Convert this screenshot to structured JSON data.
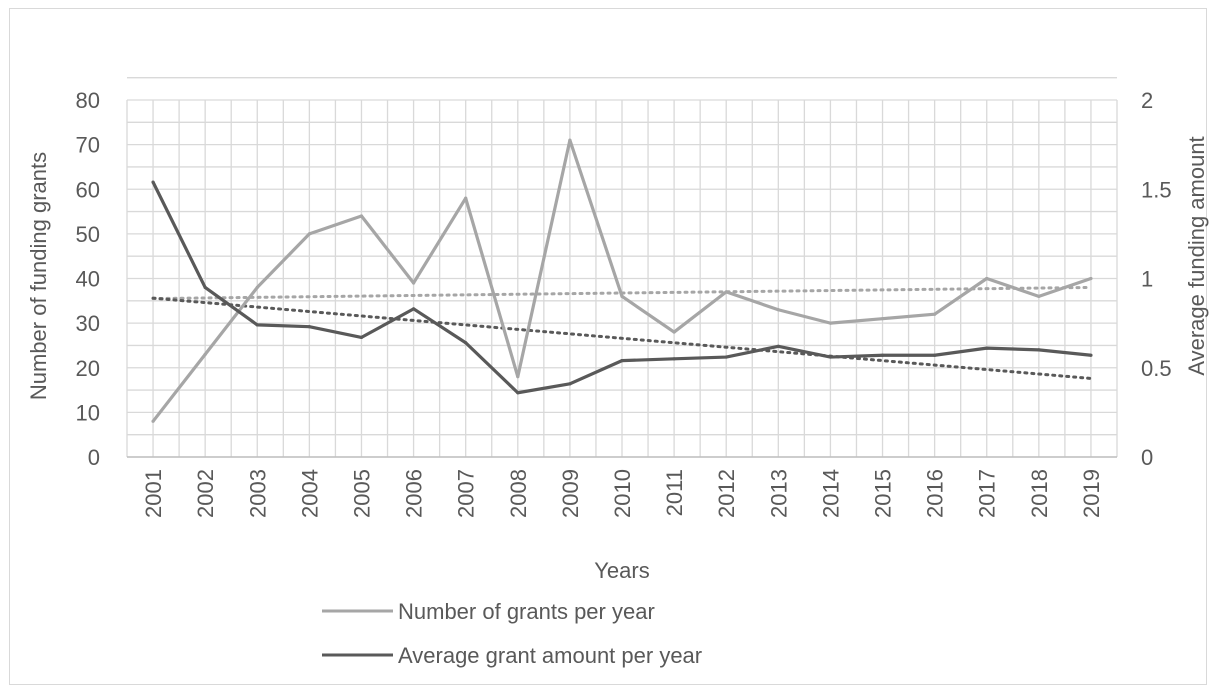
{
  "chart_data": {
    "type": "line",
    "title": "",
    "xlabel": "Years",
    "ylabel_left": "Number of funding grants",
    "ylabel_right": "Average funding amount",
    "ylim_left": [
      0,
      80
    ],
    "ylim_right": [
      0,
      2
    ],
    "yticks_left": [
      "0",
      "10",
      "20",
      "30",
      "40",
      "50",
      "60",
      "70",
      "80"
    ],
    "yticks_right": [
      "0",
      "0.5",
      "1",
      "1.5",
      "2"
    ],
    "categories": [
      "2001",
      "2002",
      "2003",
      "2004",
      "2005",
      "2006",
      "2007",
      "2008",
      "2009",
      "2010",
      "2011",
      "2012",
      "2013",
      "2014",
      "2015",
      "2016",
      "2017",
      "2018",
      "2019"
    ],
    "grid": true,
    "legend_position": "bottom",
    "series": [
      {
        "name": "Number of grants per year",
        "axis": "left",
        "color": "#a6a6a6",
        "values": [
          8,
          23,
          38,
          50,
          54,
          39,
          58,
          18,
          71,
          36,
          28,
          37,
          33,
          30,
          31,
          32,
          40,
          36,
          40
        ],
        "trendline": {
          "style": "dotted",
          "start": 35.5,
          "end": 38
        }
      },
      {
        "name": "Average grant amount per year",
        "axis": "right",
        "color": "#595959",
        "values": [
          1.54,
          0.95,
          0.74,
          0.73,
          0.67,
          0.83,
          0.64,
          0.36,
          0.41,
          0.54,
          0.55,
          0.56,
          0.62,
          0.56,
          0.57,
          0.57,
          0.61,
          0.6,
          0.57
        ],
        "trendline": {
          "style": "dotted",
          "start": 0.89,
          "end": 0.44
        }
      }
    ]
  }
}
